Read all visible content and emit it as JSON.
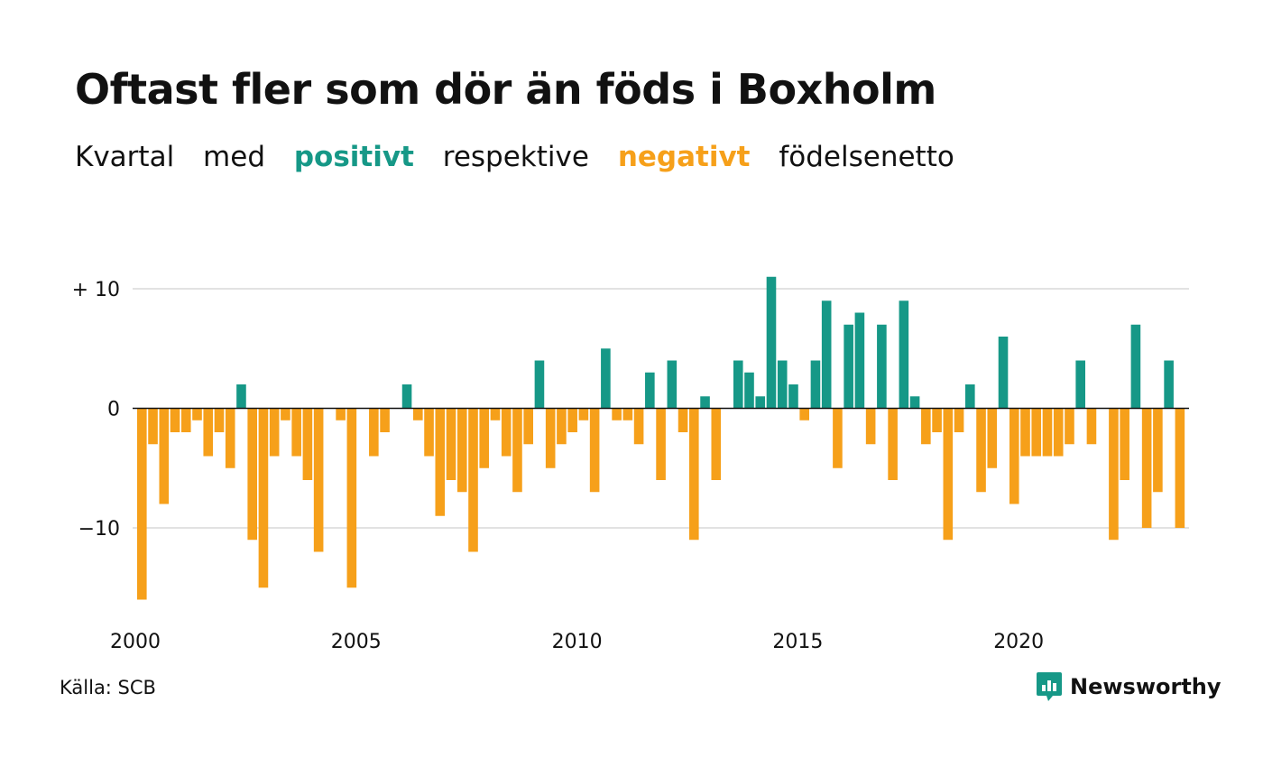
{
  "title": "Oftast fler som dör än föds i Boxholm",
  "subtitle": {
    "part1": "Kvartal",
    "part2": "med",
    "positive": "positivt",
    "part3": "respektive",
    "negative": "negativt",
    "part4": "födelsenetto"
  },
  "colors": {
    "positive": "#169887",
    "negative": "#f6a01a",
    "grid": "#e2e2e2",
    "axis": "#111111"
  },
  "source": "Källa: SCB",
  "logo": {
    "text": "Newsworthy",
    "icon": "newsworthy-logo-icon"
  },
  "chart_data": {
    "type": "bar",
    "x_start_year": 2000,
    "periods_per_year": 4,
    "y_ticks": [
      {
        "value": 10,
        "label": "+ 10"
      },
      {
        "value": 0,
        "label": "0"
      },
      {
        "value": -10,
        "label": "−10"
      }
    ],
    "x_ticks": [
      {
        "value": 2000,
        "label": "2000"
      },
      {
        "value": 2005,
        "label": "2005"
      },
      {
        "value": 2010,
        "label": "2010"
      },
      {
        "value": 2015,
        "label": "2015"
      },
      {
        "value": 2020,
        "label": "2020"
      }
    ],
    "ylim": [
      -16,
      11
    ],
    "values": [
      -16,
      -3,
      -8,
      -2,
      -2,
      -1,
      -4,
      -2,
      -5,
      2,
      -11,
      -15,
      -4,
      -1,
      -4,
      -6,
      -12,
      0,
      -1,
      -15,
      0,
      -4,
      -2,
      0,
      2,
      -1,
      -4,
      -9,
      -6,
      -7,
      -12,
      -5,
      -1,
      -4,
      -7,
      -3,
      4,
      -5,
      -3,
      -2,
      -1,
      -7,
      5,
      -1,
      -1,
      -3,
      3,
      -6,
      4,
      -2,
      -11,
      1,
      -6,
      0,
      4,
      3,
      1,
      11,
      4,
      2,
      -1,
      4,
      9,
      -5,
      7,
      8,
      -3,
      7,
      -6,
      9,
      1,
      -3,
      -2,
      -11,
      -2,
      2,
      -7,
      -5,
      6,
      -8,
      -4,
      -4,
      -4,
      -4,
      -3,
      4,
      -3,
      0,
      -11,
      -6,
      7,
      -10,
      -7,
      4,
      -10
    ],
    "grid": true,
    "legend": "none"
  }
}
